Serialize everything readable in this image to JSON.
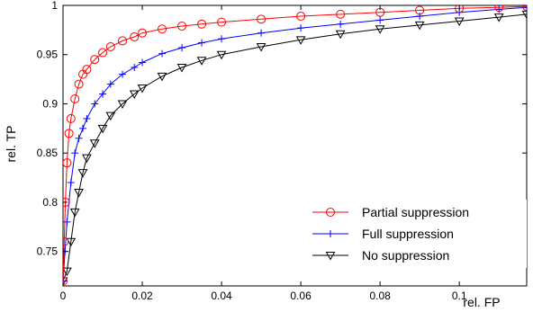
{
  "chart_data": {
    "type": "line",
    "title": "",
    "xlabel": "rel. FP",
    "ylabel": "rel. TP",
    "xlim": [
      0,
      0.117
    ],
    "ylim": [
      0.715,
      1.0
    ],
    "x_ticks": [
      0,
      0.02,
      0.04,
      0.06,
      0.08,
      0.1
    ],
    "x_tick_labels": [
      "0",
      "0.02",
      "0.04",
      "0.06",
      "0.08",
      "0.1"
    ],
    "y_ticks": [
      0.75,
      0.8,
      0.85,
      0.9,
      0.95,
      1.0
    ],
    "y_tick_labels": [
      "0.75",
      "0.8",
      "0.85",
      "0.9",
      "0.95",
      "1"
    ],
    "grid": false,
    "legend_position": "bottom-right",
    "series": [
      {
        "name": "Partial suppression",
        "color": "#ff0000",
        "marker": "circle",
        "x": [
          0,
          0.0003,
          0.0006,
          0.001,
          0.0015,
          0.002,
          0.003,
          0.004,
          0.005,
          0.006,
          0.008,
          0.01,
          0.012,
          0.015,
          0.018,
          0.02,
          0.025,
          0.03,
          0.035,
          0.04,
          0.05,
          0.06,
          0.07,
          0.08,
          0.09,
          0.1,
          0.11,
          0.117
        ],
        "y": [
          0.72,
          0.76,
          0.8,
          0.84,
          0.87,
          0.885,
          0.905,
          0.92,
          0.93,
          0.935,
          0.945,
          0.952,
          0.958,
          0.964,
          0.968,
          0.972,
          0.976,
          0.979,
          0.981,
          0.983,
          0.986,
          0.989,
          0.991,
          0.993,
          0.995,
          0.997,
          0.998,
          0.999
        ]
      },
      {
        "name": "Full suppression",
        "color": "#0000ff",
        "marker": "plus",
        "x": [
          0,
          0.0005,
          0.001,
          0.002,
          0.003,
          0.004,
          0.005,
          0.006,
          0.008,
          0.01,
          0.012,
          0.015,
          0.018,
          0.02,
          0.025,
          0.03,
          0.035,
          0.04,
          0.05,
          0.06,
          0.07,
          0.08,
          0.09,
          0.1,
          0.11,
          0.117
        ],
        "y": [
          0.72,
          0.75,
          0.78,
          0.82,
          0.85,
          0.865,
          0.875,
          0.885,
          0.9,
          0.91,
          0.92,
          0.93,
          0.937,
          0.942,
          0.951,
          0.957,
          0.962,
          0.966,
          0.972,
          0.977,
          0.981,
          0.985,
          0.989,
          0.993,
          0.996,
          0.998
        ]
      },
      {
        "name": "No suppression",
        "color": "#000000",
        "marker": "triangle-down",
        "x": [
          0,
          0.001,
          0.002,
          0.003,
          0.004,
          0.005,
          0.006,
          0.008,
          0.01,
          0.012,
          0.015,
          0.018,
          0.02,
          0.025,
          0.03,
          0.035,
          0.04,
          0.05,
          0.06,
          0.07,
          0.08,
          0.09,
          0.1,
          0.11,
          0.117
        ],
        "y": [
          0.72,
          0.73,
          0.76,
          0.79,
          0.81,
          0.83,
          0.845,
          0.86,
          0.875,
          0.888,
          0.9,
          0.91,
          0.916,
          0.928,
          0.937,
          0.944,
          0.95,
          0.958,
          0.965,
          0.971,
          0.976,
          0.98,
          0.984,
          0.988,
          0.991
        ]
      }
    ]
  }
}
